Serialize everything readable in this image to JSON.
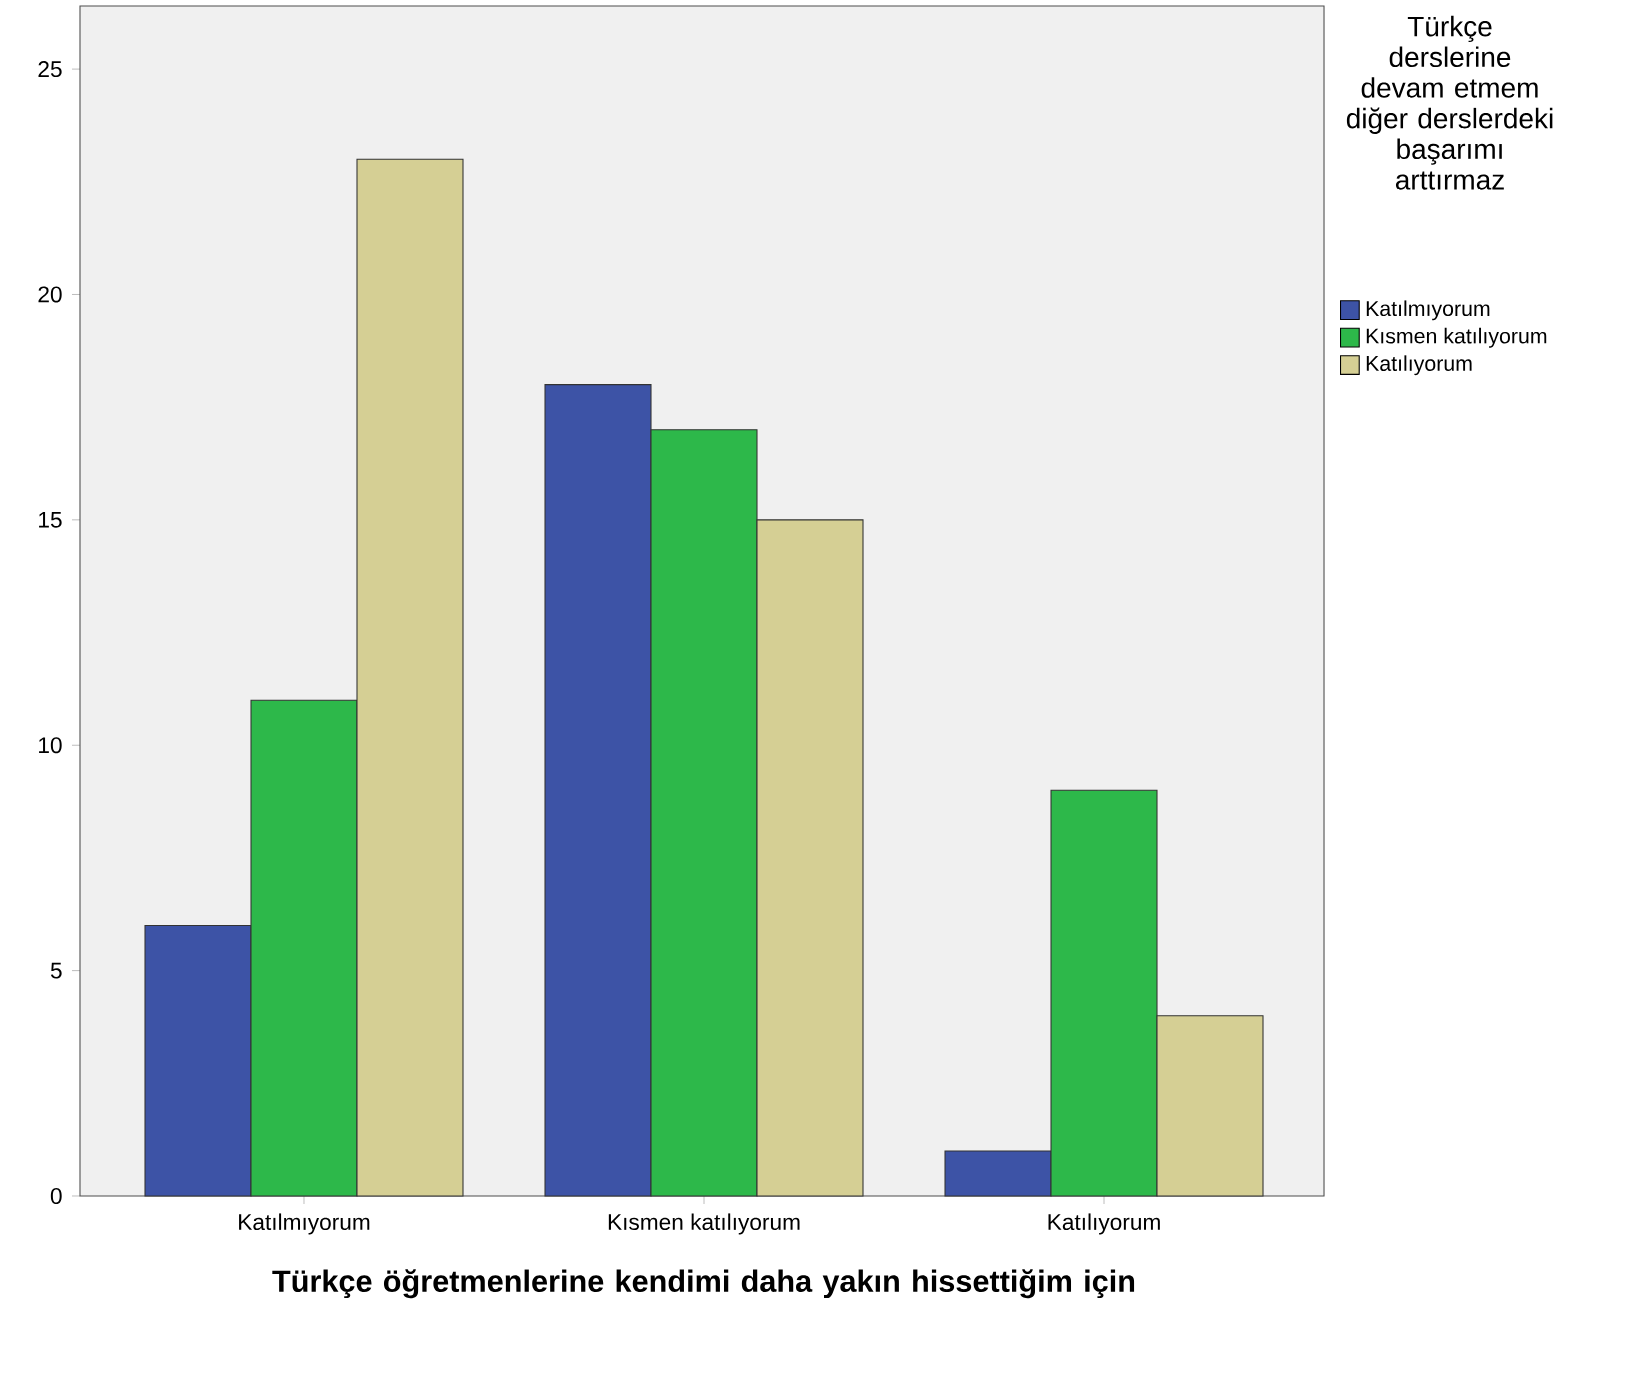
{
  "chart_data": {
    "type": "bar",
    "xlabel": "Türkçe öğretmenlerine kendimi daha yakın hissettiğim için",
    "legend_title": "Türkçe derslerine devam etmem diğer derslerdeki başarımı arttırmaz",
    "categories": [
      "Katılmıyorum",
      "Kısmen katılıyorum",
      "Katılıyorum"
    ],
    "series": [
      {
        "name": "Katılmıyorum",
        "color": "#3d53a6",
        "values": [
          6,
          18,
          1
        ]
      },
      {
        "name": "Kısmen katılıyorum",
        "color": "#2db84a",
        "values": [
          11,
          17,
          9
        ]
      },
      {
        "name": "Katılıyorum",
        "color": "#d5cf94",
        "values": [
          23,
          15,
          4
        ]
      }
    ],
    "ylim": [
      0,
      26.4
    ],
    "yticks": [
      0,
      5,
      10,
      15,
      20,
      25
    ],
    "grid": false,
    "legend": "right"
  }
}
